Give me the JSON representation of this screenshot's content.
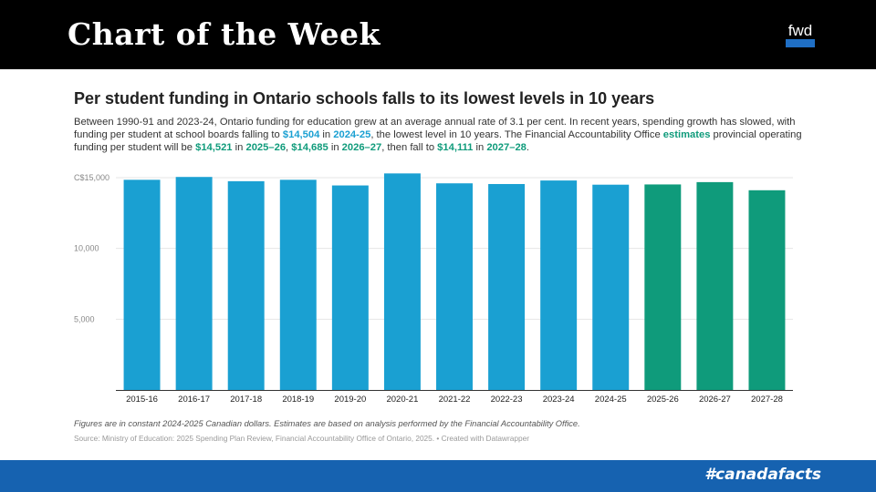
{
  "header": {
    "title": "Chart of the Week",
    "logo_text": "fwd"
  },
  "chart": {
    "title": "Per student funding in Ontario schools falls to its lowest levels in 10 years",
    "subtitle": {
      "s1": "Between 1990-91 and 2023-24, Ontario funding for education grew at an average annual rate of 3.1 per cent. In recent years, spending growth has slowed, with funding per student at school boards falling to ",
      "v1": "$14,504",
      "s2": " in ",
      "y1": "2024-25",
      "s3": ", the lowest level in 10 years. The Financial Accountability Office ",
      "estimates": "estimates",
      "s4": " provincial operating funding per student will be ",
      "v2": "$14,521",
      "s5": " in ",
      "y2": "2025–26",
      "s6": ", ",
      "v3": "$14,685",
      "s7": " in ",
      "y3": "2026–27",
      "s8": ", then fall to ",
      "v4": "$14,111",
      "s9": " in ",
      "y4": "2027–28",
      "s10": "."
    },
    "note": "Figures are in constant 2024-2025 Canadian dollars. Estimates are based on analysis performed by the Financial Accountability Office.",
    "source": "Source: Ministry of Education: 2025 Spending Plan Review, Financial Accountability Office of Ontario, 2025. • Created with Datawrapper"
  },
  "footer": {
    "hashtag": "#canadafacts"
  },
  "colors": {
    "actual": "#1aa0d2",
    "estimate": "#0f9b7b",
    "header_bg": "#000000",
    "footer_bg": "#1662b0"
  },
  "chart_data": {
    "type": "bar",
    "title": "Per student funding in Ontario schools falls to its lowest levels in 10 years",
    "xlabel": "",
    "ylabel": "",
    "ylim": [
      0,
      15000
    ],
    "yticks": [
      {
        "value": 5000,
        "label": "5,000"
      },
      {
        "value": 10000,
        "label": "10,000"
      },
      {
        "value": 15000,
        "label": "C$15,000"
      }
    ],
    "grid": true,
    "categories": [
      "2015-16",
      "2016-17",
      "2017-18",
      "2018-19",
      "2019-20",
      "2020-21",
      "2021-22",
      "2022-23",
      "2023-24",
      "2024-25",
      "2025-26",
      "2026-27",
      "2027-28"
    ],
    "values": [
      14850,
      15050,
      14750,
      14850,
      14450,
      15300,
      14600,
      14550,
      14800,
      14504,
      14521,
      14685,
      14111
    ],
    "estimate": [
      false,
      false,
      false,
      false,
      false,
      false,
      false,
      false,
      false,
      false,
      true,
      true,
      true
    ]
  }
}
